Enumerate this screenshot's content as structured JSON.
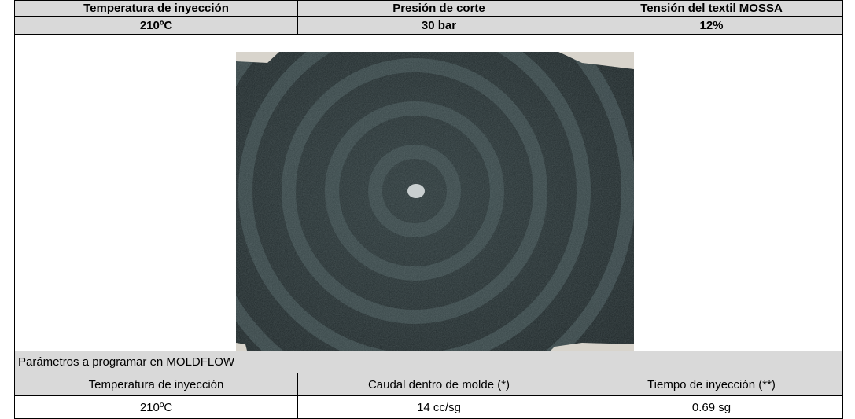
{
  "table": {
    "header": [
      "Temperatura de inyección",
      "Presión de corte",
      "Tensión del textil MOSSA"
    ],
    "values": [
      "210ºC",
      "30 bar",
      "12%"
    ]
  },
  "moldflow": {
    "title": "Parámetros a programar en MOLDFLOW",
    "header": [
      "Temperatura de inyección",
      "Caudal dentro de molde (*)",
      "Tiempo de inyección (**)"
    ],
    "values": [
      "210ºC",
      "14 cc/sg",
      "0.69 sg"
    ]
  }
}
